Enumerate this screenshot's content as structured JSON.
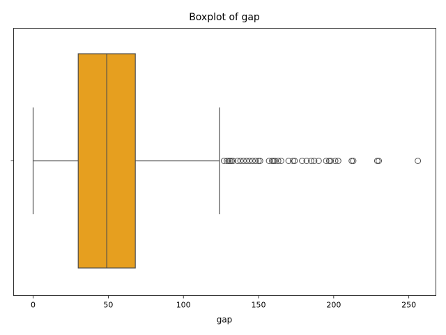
{
  "chart_data": {
    "type": "boxplot",
    "title": "Boxplot of gap",
    "xlabel": "gap",
    "ylabel": "",
    "orientation": "horizontal",
    "xlim": [
      -13,
      268
    ],
    "xticks": [
      0,
      50,
      100,
      150,
      200,
      250
    ],
    "xtick_labels": [
      "0",
      "50",
      "100",
      "150",
      "200",
      "250"
    ],
    "box_color": "#e69f1f",
    "edge_color": "#4d4d4d",
    "stats": {
      "whisker_low": 0,
      "q1": 30,
      "median": 49,
      "q3": 68,
      "whisker_high": 124
    },
    "outliers": [
      127,
      129,
      130,
      131,
      132,
      133,
      136,
      138,
      140,
      142,
      144,
      146,
      148,
      150,
      151,
      157,
      159,
      160,
      161,
      163,
      165,
      170,
      173,
      174,
      179,
      182,
      185,
      187,
      190,
      195,
      197,
      198,
      201,
      203,
      212,
      213,
      229,
      230,
      256
    ]
  }
}
